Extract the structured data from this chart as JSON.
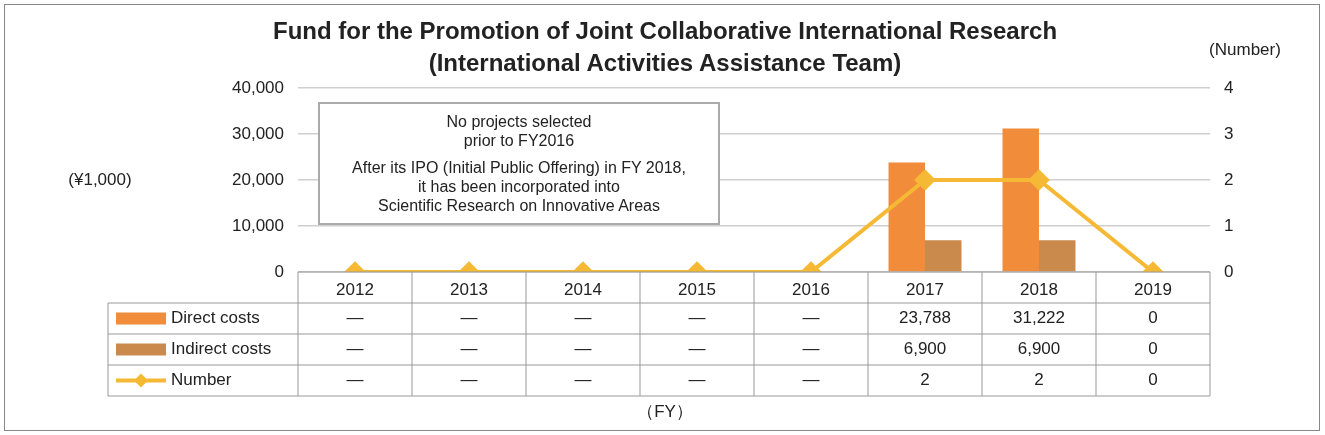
{
  "chart_data": {
    "type": "bar",
    "title": "Fund for the Promotion of Joint Collaborative International Research",
    "subtitle": "(International Activities Assistance Team)",
    "y2label": "(Number)",
    "annotations": [
      "(¥1,000)",
      "No projects selected\nprior to FY2016",
      "After its IPO (Initial Public Offering) in FY 2018,\nit has been incorporated into\nScientific Research on Innovative Areas",
      "（FY）"
    ],
    "categories": [
      "2012",
      "2013",
      "2014",
      "2015",
      "2016",
      "2017",
      "2018",
      "2019"
    ],
    "series": [
      {
        "name": "Direct costs",
        "color": "#f08c3a",
        "values": [
          null,
          null,
          null,
          null,
          null,
          23788,
          31222,
          0
        ],
        "value_labels": [
          "—",
          "—",
          "—",
          "—",
          "—",
          "23,788",
          "31,222",
          "0"
        ]
      },
      {
        "name": "Indirect costs",
        "color": "#c98a4b",
        "values": [
          null,
          null,
          null,
          null,
          null,
          6900,
          6900,
          0
        ],
        "value_labels": [
          "—",
          "—",
          "—",
          "—",
          "—",
          "6,900",
          "6,900",
          "0"
        ]
      },
      {
        "name": "Number",
        "type": "line",
        "axis": "y2",
        "color": "#f5b935",
        "marker": "diamond",
        "values": [
          0,
          0,
          0,
          0,
          0,
          2,
          2,
          0
        ],
        "value_labels": [
          "—",
          "—",
          "—",
          "—",
          "—",
          "2",
          "2",
          "0"
        ]
      }
    ],
    "ylim": [
      0,
      40000
    ],
    "yticks": [
      0,
      {
        "value": 10000,
        "label": "10,000"
      },
      {
        "value": 20000,
        "label": "20,000"
      },
      {
        "value": 30000,
        "label": "30,000"
      },
      {
        "value": 40000,
        "label": "40,000"
      }
    ],
    "y2lim": [
      0,
      4
    ],
    "y2ticks": [
      0,
      1,
      2,
      3,
      4
    ],
    "grid": "y",
    "legend": "bottom left"
  }
}
